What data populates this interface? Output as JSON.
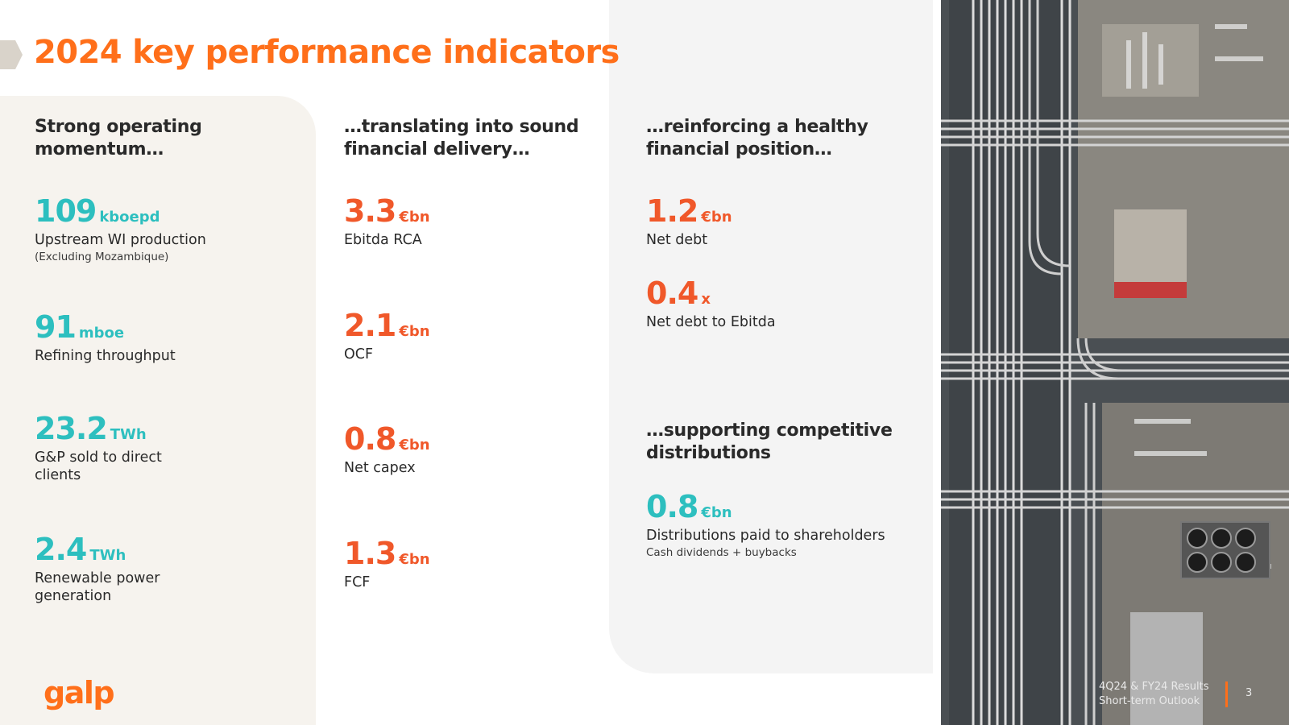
{
  "title": "2024 key performance indicators",
  "colors": {
    "accent": "#ff6f1a",
    "teal": "#2dbfbf",
    "orange": "#f0582a"
  },
  "operating": {
    "heading": "Strong operating momentum…",
    "kpis": [
      {
        "value": "109",
        "unit": "kboepd",
        "label": "Upstream WI production",
        "note": "(Excluding Mozambique)"
      },
      {
        "value": "91",
        "unit": "mboe",
        "label": "Refining throughput"
      },
      {
        "value": "23.2",
        "unit": "TWh",
        "label": "G&P sold to direct clients"
      },
      {
        "value": "2.4",
        "unit": "TWh",
        "label": "Renewable power generation"
      }
    ]
  },
  "financial": {
    "heading": "…translating into sound financial delivery…",
    "kpis": [
      {
        "value": "3.3",
        "unit": "€bn",
        "label": "Ebitda RCA"
      },
      {
        "value": "2.1",
        "unit": "€bn",
        "label": "OCF"
      },
      {
        "value": "0.8",
        "unit": "€bn",
        "label": "Net capex"
      },
      {
        "value": "1.3",
        "unit": "€bn",
        "label": "FCF"
      }
    ]
  },
  "position": {
    "heading": "…reinforcing a healthy financial position…",
    "kpis": [
      {
        "value": "1.2",
        "unit": "€bn",
        "label": "Net debt"
      },
      {
        "value": "0.4",
        "unit": "x",
        "label": "Net debt to Ebitda"
      }
    ]
  },
  "distributions": {
    "heading": "…supporting competitive distributions",
    "kpis": [
      {
        "value": "0.8",
        "unit": "€bn",
        "label": "Distributions paid to shareholders",
        "note": "Cash dividends + buybacks"
      }
    ]
  },
  "logo": "galp",
  "footer": {
    "line1": "4Q24 & FY24 Results",
    "line2": "Short-term Outlook",
    "page": "3"
  }
}
